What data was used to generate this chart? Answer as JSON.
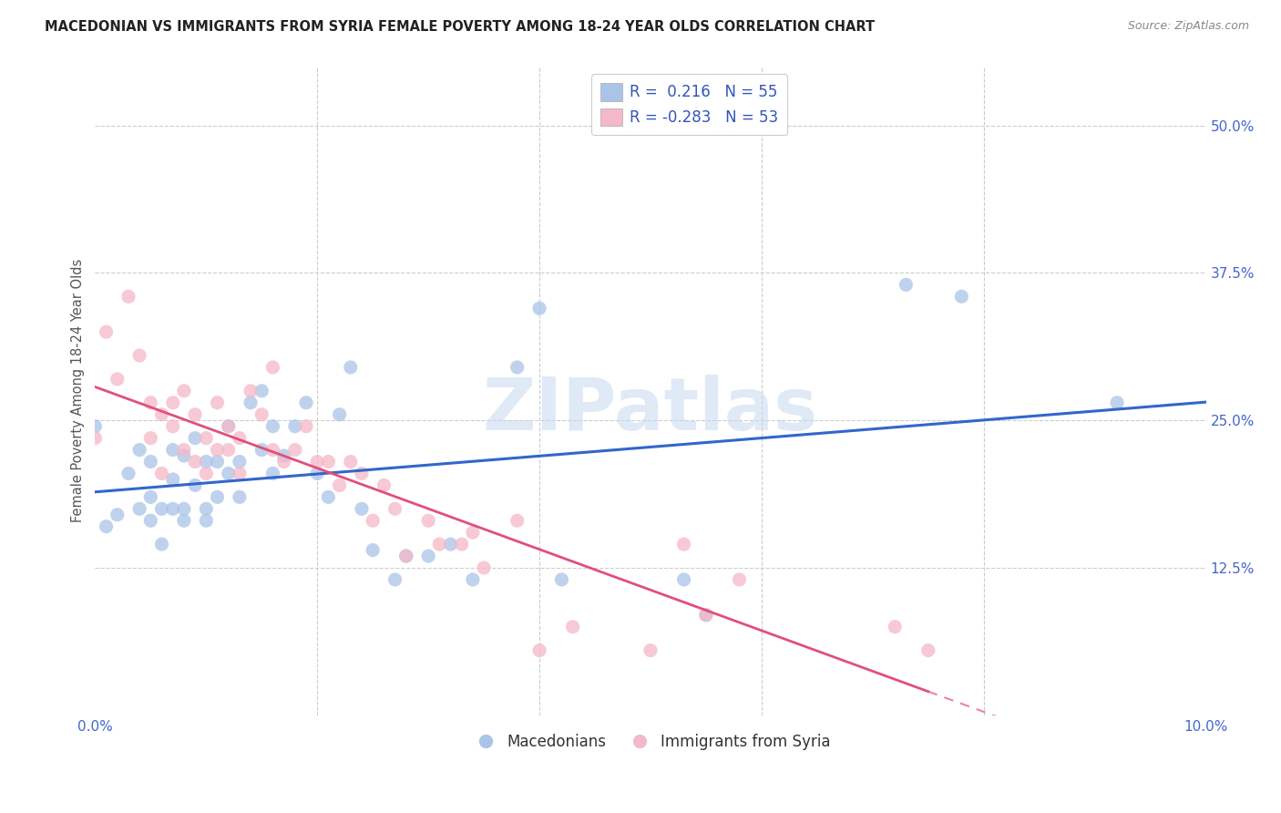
{
  "title": "MACEDONIAN VS IMMIGRANTS FROM SYRIA FEMALE POVERTY AMONG 18-24 YEAR OLDS CORRELATION CHART",
  "source": "Source: ZipAtlas.com",
  "ylabel": "Female Poverty Among 18-24 Year Olds",
  "xlim": [
    0.0,
    0.1
  ],
  "ylim": [
    0.0,
    0.55
  ],
  "color_blue": "#aac4e8",
  "color_pink": "#f5b8c8",
  "line_blue": "#3366cc",
  "line_pink": "#e0507a",
  "watermark_color": "#c8d8f0",
  "macedonians_x": [
    0.0,
    0.001,
    0.002,
    0.003,
    0.004,
    0.004,
    0.005,
    0.005,
    0.005,
    0.006,
    0.006,
    0.007,
    0.007,
    0.007,
    0.008,
    0.008,
    0.008,
    0.009,
    0.009,
    0.01,
    0.01,
    0.01,
    0.011,
    0.011,
    0.012,
    0.012,
    0.013,
    0.013,
    0.014,
    0.015,
    0.015,
    0.016,
    0.016,
    0.017,
    0.018,
    0.019,
    0.02,
    0.021,
    0.022,
    0.023,
    0.024,
    0.025,
    0.027,
    0.028,
    0.03,
    0.032,
    0.034,
    0.038,
    0.04,
    0.042,
    0.053,
    0.055,
    0.073,
    0.078,
    0.092
  ],
  "macedonians_y": [
    0.245,
    0.16,
    0.17,
    0.205,
    0.175,
    0.225,
    0.165,
    0.215,
    0.185,
    0.175,
    0.145,
    0.2,
    0.175,
    0.225,
    0.175,
    0.22,
    0.165,
    0.195,
    0.235,
    0.175,
    0.215,
    0.165,
    0.215,
    0.185,
    0.205,
    0.245,
    0.215,
    0.185,
    0.265,
    0.225,
    0.275,
    0.205,
    0.245,
    0.22,
    0.245,
    0.265,
    0.205,
    0.185,
    0.255,
    0.295,
    0.175,
    0.14,
    0.115,
    0.135,
    0.135,
    0.145,
    0.115,
    0.295,
    0.345,
    0.115,
    0.115,
    0.085,
    0.365,
    0.355,
    0.265
  ],
  "syria_x": [
    0.0,
    0.001,
    0.002,
    0.003,
    0.004,
    0.005,
    0.005,
    0.006,
    0.006,
    0.007,
    0.007,
    0.008,
    0.008,
    0.009,
    0.009,
    0.01,
    0.01,
    0.011,
    0.011,
    0.012,
    0.012,
    0.013,
    0.013,
    0.014,
    0.015,
    0.016,
    0.016,
    0.017,
    0.018,
    0.019,
    0.02,
    0.021,
    0.022,
    0.023,
    0.024,
    0.025,
    0.026,
    0.027,
    0.028,
    0.03,
    0.031,
    0.033,
    0.034,
    0.035,
    0.038,
    0.04,
    0.043,
    0.05,
    0.053,
    0.055,
    0.058,
    0.072,
    0.075
  ],
  "syria_y": [
    0.235,
    0.325,
    0.285,
    0.355,
    0.305,
    0.265,
    0.235,
    0.255,
    0.205,
    0.265,
    0.245,
    0.225,
    0.275,
    0.215,
    0.255,
    0.235,
    0.205,
    0.225,
    0.265,
    0.225,
    0.245,
    0.205,
    0.235,
    0.275,
    0.255,
    0.225,
    0.295,
    0.215,
    0.225,
    0.245,
    0.215,
    0.215,
    0.195,
    0.215,
    0.205,
    0.165,
    0.195,
    0.175,
    0.135,
    0.165,
    0.145,
    0.145,
    0.155,
    0.125,
    0.165,
    0.055,
    0.075,
    0.055,
    0.145,
    0.085,
    0.115,
    0.075,
    0.055
  ]
}
